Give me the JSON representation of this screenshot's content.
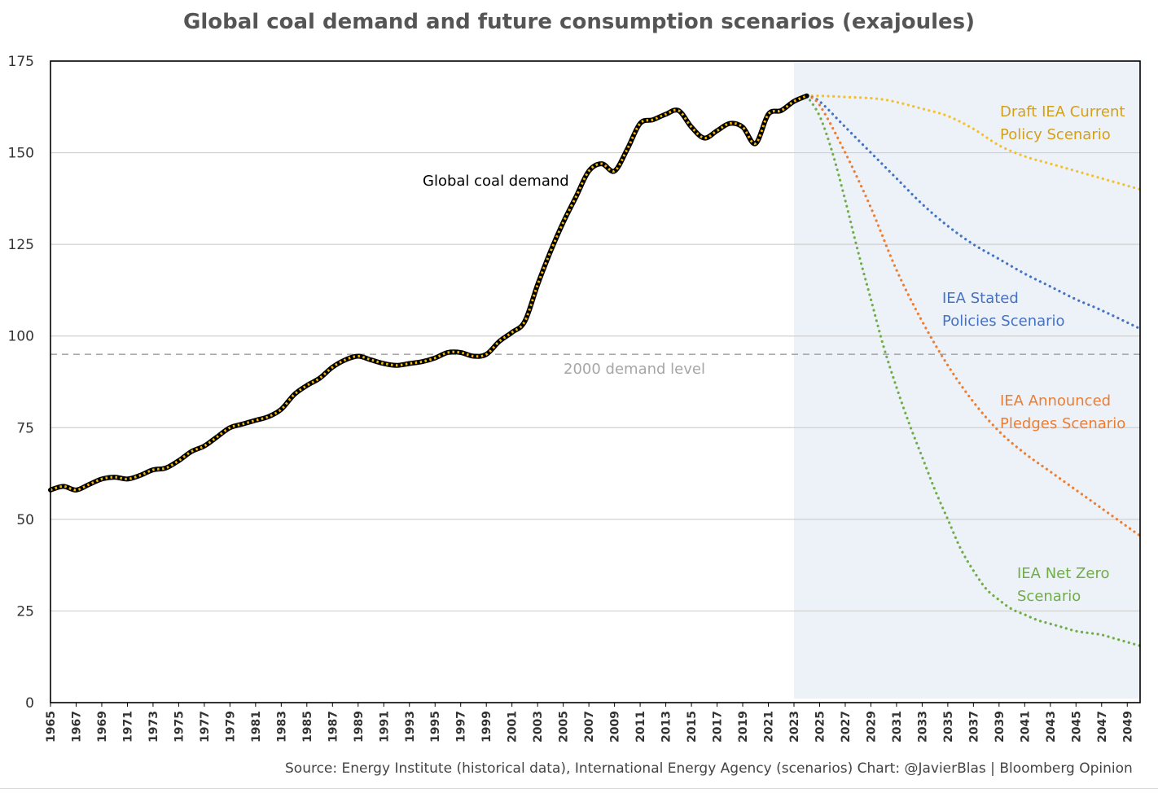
{
  "chart_data": {
    "type": "line",
    "title": "Global coal demand and future consumption scenarios  (exajoules)",
    "xlabel": "",
    "ylabel": "",
    "xlim": [
      1965,
      2050
    ],
    "ylim": [
      0,
      175
    ],
    "yticks": [
      0,
      25,
      50,
      75,
      100,
      125,
      150,
      175
    ],
    "xticks": [
      "1965",
      "1967",
      "1969",
      "1971",
      "1973",
      "1975",
      "1977",
      "1979",
      "1981",
      "1983",
      "1985",
      "1987",
      "1989",
      "1991",
      "1993",
      "1995",
      "1997",
      "1999",
      "2001",
      "2003",
      "2005",
      "2007",
      "2009",
      "2011",
      "2013",
      "2015",
      "2017",
      "2019",
      "2021",
      "2023",
      "2025",
      "2027",
      "2029",
      "2031",
      "2033",
      "2035",
      "2037",
      "2039",
      "2041",
      "2043",
      "2045",
      "2047",
      "2049"
    ],
    "scenario_period_start": 2023,
    "reference_line": {
      "label": "2000 demand level",
      "value": 95
    },
    "series": [
      {
        "name": "Global coal demand",
        "style": "historical",
        "color": "#000000",
        "dash_color": "#f5b800",
        "x": [
          1965,
          1966,
          1967,
          1968,
          1969,
          1970,
          1971,
          1972,
          1973,
          1974,
          1975,
          1976,
          1977,
          1978,
          1979,
          1980,
          1981,
          1982,
          1983,
          1984,
          1985,
          1986,
          1987,
          1988,
          1989,
          1990,
          1991,
          1992,
          1993,
          1994,
          1995,
          1996,
          1997,
          1998,
          1999,
          2000,
          2001,
          2002,
          2003,
          2004,
          2005,
          2006,
          2007,
          2008,
          2009,
          2010,
          2011,
          2012,
          2013,
          2014,
          2015,
          2016,
          2017,
          2018,
          2019,
          2020,
          2021,
          2022,
          2023,
          2024
        ],
        "values": [
          58,
          59,
          58,
          59.5,
          61,
          61.5,
          61,
          62,
          63.5,
          64,
          66,
          68.5,
          70,
          72.5,
          75,
          76,
          77,
          78,
          80,
          84,
          86.5,
          88.5,
          91.5,
          93.5,
          94.5,
          93.5,
          92.5,
          92,
          92.5,
          93,
          94,
          95.5,
          95.5,
          94.5,
          95,
          98.5,
          101,
          104,
          114,
          123,
          131,
          138,
          145,
          147,
          145,
          151,
          158,
          159,
          160.5,
          161.5,
          157,
          154,
          156,
          158,
          157,
          152.5,
          160.5,
          161.5,
          164,
          165.5
        ]
      },
      {
        "name": "Draft IEA Current Policy Scenario",
        "label_lines": [
          "Draft IEA Current",
          "Policy Scenario"
        ],
        "color": "#f2c12e",
        "label_color": "#d4a017",
        "x": [
          2024,
          2025,
          2027,
          2030,
          2033,
          2035,
          2037,
          2039,
          2041,
          2043,
          2045,
          2047,
          2050
        ],
        "values": [
          165.5,
          165.5,
          165.2,
          164.5,
          162,
          160,
          156.5,
          152,
          149,
          147,
          145,
          143,
          140
        ]
      },
      {
        "name": "IEA Stated Policies Scenario",
        "label_lines": [
          "IEA Stated",
          "Policies Scenario"
        ],
        "color": "#4472c4",
        "label_color": "#4472c4",
        "x": [
          2024,
          2025,
          2027,
          2029,
          2031,
          2033,
          2035,
          2037,
          2039,
          2041,
          2043,
          2045,
          2047,
          2050
        ],
        "values": [
          165.5,
          164,
          157,
          150,
          143,
          136,
          130,
          125,
          121,
          117,
          113.5,
          110,
          107,
          102
        ]
      },
      {
        "name": "IEA Announced Pledges Scenario",
        "label_lines": [
          "IEA Announced",
          "Pledges Scenario"
        ],
        "color": "#ed7d31",
        "label_color": "#ed7d31",
        "x": [
          2024,
          2025,
          2027,
          2029,
          2031,
          2033,
          2035,
          2037,
          2039,
          2041,
          2043,
          2045,
          2047,
          2049,
          2050
        ],
        "values": [
          165.5,
          163,
          150,
          135,
          118,
          104,
          92,
          82,
          74,
          68,
          63,
          58,
          53,
          48,
          45.5
        ]
      },
      {
        "name": "IEA Net Zero Scenario",
        "label_lines": [
          "IEA Net Zero",
          "Scenario"
        ],
        "color": "#70ad47",
        "label_color": "#70ad47",
        "x": [
          2024,
          2025,
          2026,
          2027,
          2028,
          2029,
          2030,
          2031,
          2032,
          2033,
          2034,
          2035,
          2036,
          2037,
          2038,
          2039,
          2040,
          2041,
          2042,
          2043,
          2044,
          2045,
          2046,
          2047,
          2048,
          2049,
          2050
        ],
        "values": [
          165.5,
          160,
          150,
          137,
          123,
          110,
          97,
          86,
          76,
          67,
          58,
          50,
          42,
          36,
          31,
          28,
          25.5,
          24,
          22.5,
          21.5,
          20.5,
          19.5,
          19,
          18.5,
          17.5,
          16.5,
          15.5
        ]
      }
    ]
  },
  "footer": {
    "source": "Source: Energy Institute (historical data), International Energy Agency (scenarios)     Chart: @JavierBlas | Bloomberg Opinion"
  },
  "colors": {
    "scenario_shade": "#edf1f8",
    "grid": "#d0d0d0",
    "axis": "#000000",
    "reference_line": "#aaaaaa",
    "reference_label": "#a6a6a6"
  }
}
